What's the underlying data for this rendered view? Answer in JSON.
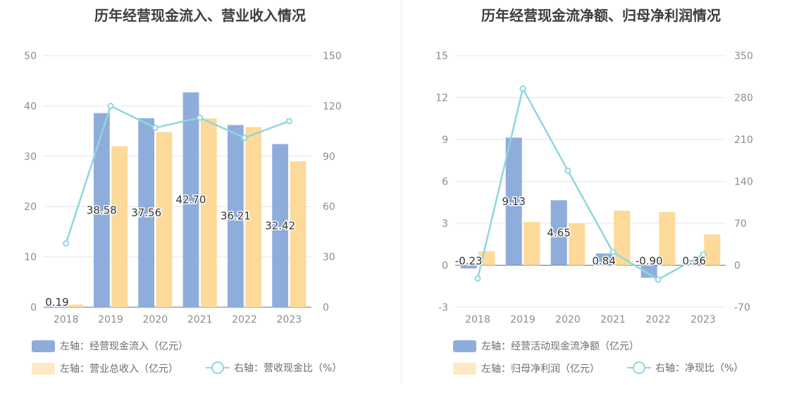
{
  "chart_data": [
    {
      "type": "bar",
      "title": "历年经营现金流入、营业收入情况",
      "categories": [
        "2018",
        "2019",
        "2020",
        "2021",
        "2022",
        "2023"
      ],
      "y_left": {
        "min": 0,
        "max": 50,
        "ticks": [
          "0",
          "10",
          "20",
          "30",
          "40",
          "50"
        ]
      },
      "y_right": {
        "min": 0,
        "max": 150,
        "ticks": [
          "0",
          "30",
          "60",
          "90",
          "120",
          "150"
        ]
      },
      "series": [
        {
          "name": "左轴：经营现金流入（亿元）",
          "kind": "bar",
          "axis": "left",
          "color": "#8faddb",
          "values": [
            0.19,
            38.58,
            37.56,
            42.7,
            36.21,
            32.42
          ],
          "labels": [
            "0.19",
            "38.58",
            "37.56",
            "42.70",
            "36.21",
            "32.42"
          ]
        },
        {
          "name": "左轴：营业总收入（亿元）",
          "kind": "bar",
          "axis": "left",
          "color": "#fdd99a",
          "values": [
            0.5,
            32.0,
            34.8,
            37.5,
            35.8,
            29.0
          ]
        },
        {
          "name": "右轴：营收现金比（%）",
          "kind": "line",
          "axis": "right",
          "color": "#8fd7dd",
          "values": [
            38,
            120,
            107,
            113,
            101,
            111
          ]
        }
      ]
    },
    {
      "type": "bar",
      "title": "历年经营现金流净额、归母净利润情况",
      "categories": [
        "2018",
        "2019",
        "2020",
        "2021",
        "2022",
        "2023"
      ],
      "y_left": {
        "min": -3,
        "max": 15,
        "ticks": [
          "-3",
          "0",
          "3",
          "6",
          "9",
          "12",
          "15"
        ]
      },
      "y_right": {
        "min": -70,
        "max": 350,
        "ticks": [
          "-70",
          "0",
          "70",
          "140",
          "210",
          "280",
          "350"
        ]
      },
      "series": [
        {
          "name": "左轴：经营活动现金流净额（亿元）",
          "kind": "bar",
          "axis": "left",
          "color": "#8faddb",
          "values": [
            -0.23,
            9.13,
            4.65,
            0.84,
            -0.9,
            0.36
          ],
          "labels": [
            "-0.23",
            "9.13",
            "4.65",
            "0.84",
            "-0.90",
            "0.36"
          ]
        },
        {
          "name": "左轴：归母净利润（亿元）",
          "kind": "bar",
          "axis": "left",
          "color": "#fdd99a",
          "values": [
            1.0,
            3.1,
            3.0,
            3.9,
            3.8,
            2.2
          ]
        },
        {
          "name": "右轴：净现比（%）",
          "kind": "line",
          "axis": "right",
          "color": "#8fd7dd",
          "values": [
            -22,
            295,
            158,
            22,
            -24,
            18
          ]
        }
      ]
    }
  ]
}
